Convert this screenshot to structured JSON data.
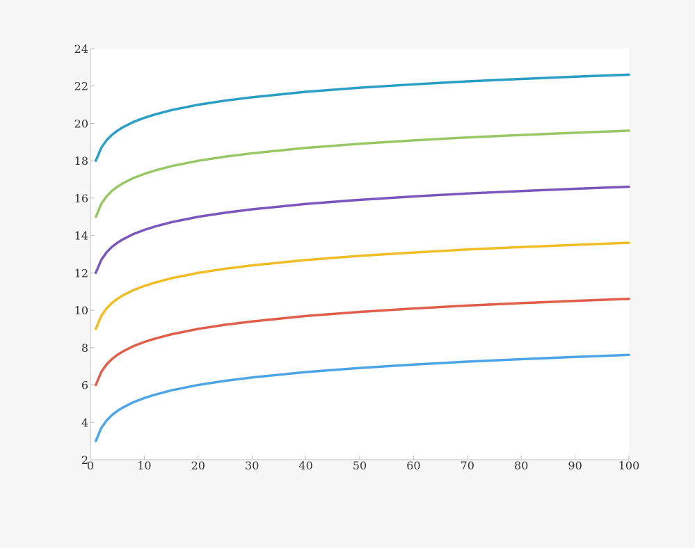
{
  "chart_data": {
    "type": "line",
    "title": "",
    "xlabel": "",
    "ylabel": "",
    "xlim": [
      0,
      100
    ],
    "ylim": [
      2,
      24
    ],
    "grid": false,
    "legend": "none",
    "x_ticks": [
      0,
      10,
      20,
      30,
      40,
      50,
      60,
      70,
      80,
      90,
      100
    ],
    "y_ticks": [
      2,
      4,
      6,
      8,
      10,
      12,
      14,
      16,
      18,
      20,
      22,
      24
    ],
    "x": [
      1,
      2,
      3,
      4,
      5,
      6,
      8,
      10,
      12,
      15,
      20,
      25,
      30,
      40,
      50,
      60,
      70,
      80,
      90,
      100
    ],
    "series": [
      {
        "color": "#4da5e6",
        "values": [
          3.0,
          3.69,
          4.1,
          4.39,
          4.61,
          4.79,
          5.08,
          5.3,
          5.48,
          5.71,
          6.0,
          6.22,
          6.4,
          6.69,
          6.91,
          7.09,
          7.25,
          7.38,
          7.5,
          7.61
        ]
      },
      {
        "color": "#e05f4a",
        "values": [
          6.0,
          6.69,
          7.1,
          7.39,
          7.61,
          7.79,
          8.08,
          8.3,
          8.48,
          8.71,
          9.0,
          9.22,
          9.4,
          9.69,
          9.91,
          10.09,
          10.25,
          10.38,
          10.5,
          10.61
        ]
      },
      {
        "color": "#f0bd27",
        "values": [
          9.0,
          9.69,
          10.1,
          10.39,
          10.61,
          10.79,
          11.08,
          11.3,
          11.48,
          11.71,
          12.0,
          12.22,
          12.4,
          12.69,
          12.91,
          13.09,
          13.25,
          13.38,
          13.5,
          13.61
        ]
      },
      {
        "color": "#7b56bc",
        "values": [
          12.0,
          12.69,
          13.1,
          13.39,
          13.61,
          13.79,
          14.08,
          14.3,
          14.48,
          14.71,
          15.0,
          15.22,
          15.4,
          15.69,
          15.91,
          16.09,
          16.25,
          16.38,
          16.5,
          16.61
        ]
      },
      {
        "color": "#97c865",
        "values": [
          15.0,
          15.69,
          16.1,
          16.39,
          16.61,
          16.79,
          17.08,
          17.3,
          17.48,
          17.71,
          18.0,
          18.22,
          18.4,
          18.69,
          18.91,
          19.09,
          19.25,
          19.38,
          19.5,
          19.61
        ]
      },
      {
        "color": "#2b9ec5",
        "values": [
          18.0,
          18.69,
          19.1,
          19.39,
          19.61,
          19.79,
          20.08,
          20.3,
          20.48,
          20.71,
          21.0,
          21.22,
          21.4,
          21.69,
          21.91,
          22.09,
          22.25,
          22.38,
          22.5,
          22.61
        ]
      }
    ]
  }
}
